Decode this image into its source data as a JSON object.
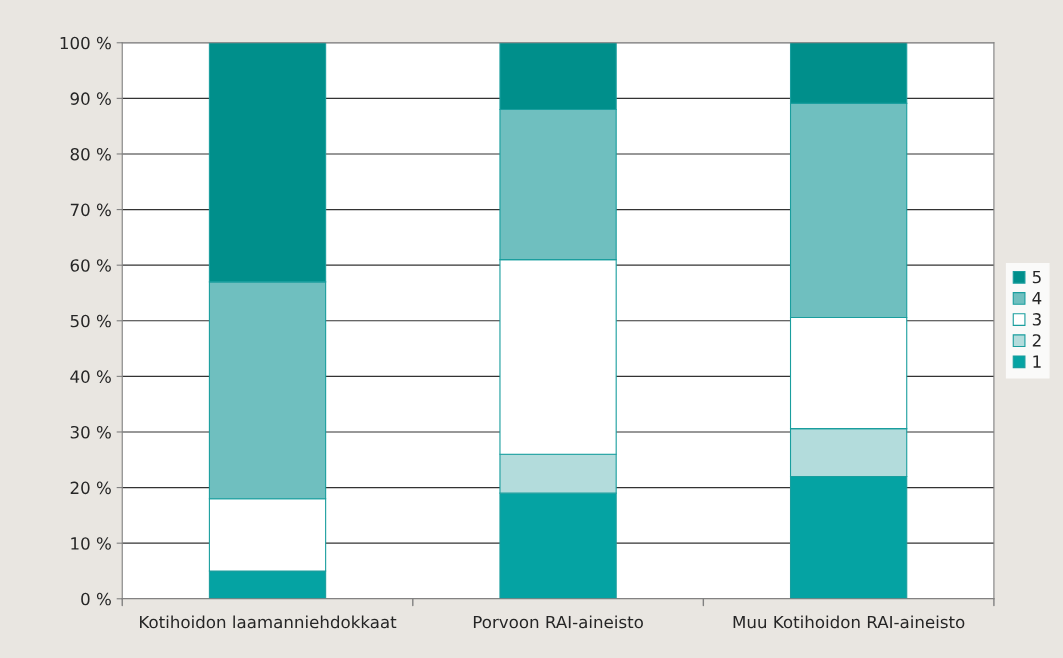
{
  "chart_data": {
    "type": "bar",
    "stacked": true,
    "categories": [
      "Kotihoidon laamanniehdokkaat",
      "Porvoon RAI-aineisto",
      "Muu Kotihoidon RAI-aineisto"
    ],
    "series": [
      {
        "name": "1",
        "color": "#05a3a3",
        "values": [
          5,
          19,
          22
        ]
      },
      {
        "name": "2",
        "color": "#b3dcdc",
        "values": [
          0,
          7,
          8.6
        ]
      },
      {
        "name": "3",
        "color": "#ffffff",
        "values": [
          13,
          35,
          20
        ]
      },
      {
        "name": "4",
        "color": "#6fbfbf",
        "values": [
          39,
          27,
          38.5
        ]
      },
      {
        "name": "5",
        "color": "#008f8b",
        "values": [
          43,
          12,
          11
        ]
      }
    ],
    "ylim": [
      0,
      100
    ],
    "yticks": [
      {
        "value": 0,
        "label": "0 %"
      },
      {
        "value": 10,
        "label": "10 %"
      },
      {
        "value": 20,
        "label": "20 %"
      },
      {
        "value": 30,
        "label": "30 %"
      },
      {
        "value": 40,
        "label": "40 %"
      },
      {
        "value": 50,
        "label": "50 %"
      },
      {
        "value": 60,
        "label": "60 %"
      },
      {
        "value": 70,
        "label": "70 %"
      },
      {
        "value": 80,
        "label": "80 %"
      },
      {
        "value": 90,
        "label": "90 %"
      },
      {
        "value": 100,
        "label": "100 %"
      }
    ],
    "grid": "y",
    "legend": "right"
  }
}
